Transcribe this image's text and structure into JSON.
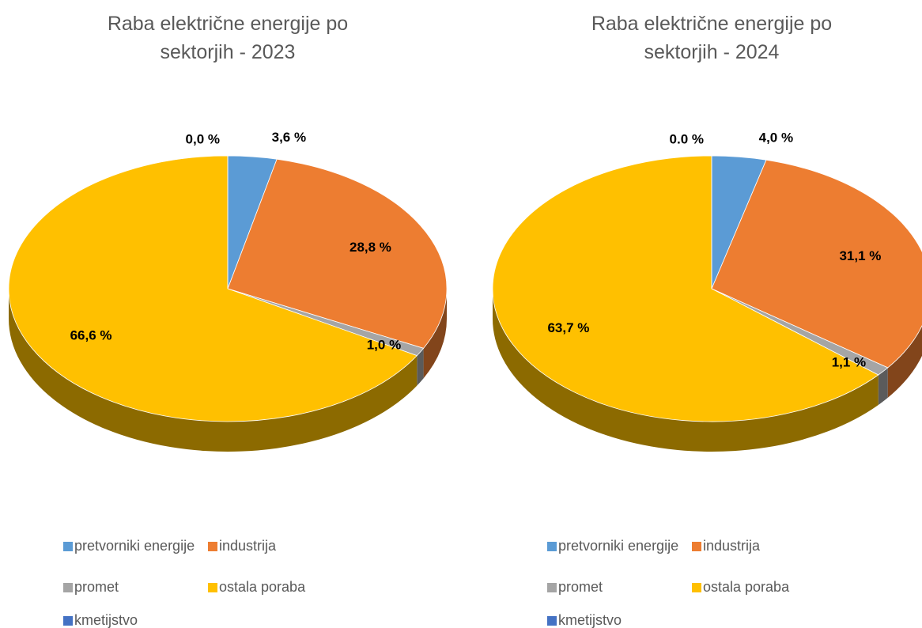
{
  "chart_data": [
    {
      "type": "pie",
      "title": "Raba električne energije po sektorjih - 2023",
      "categories": [
        "pretvorniki energije",
        "industrija",
        "promet",
        "ostala poraba",
        "kmetijstvo"
      ],
      "values": [
        3.6,
        28.8,
        1.0,
        66.6,
        0.0
      ],
      "value_labels": [
        "3,6 %",
        "28,8 %",
        "1,0 %",
        "66,6 %",
        "0,0 %"
      ],
      "colors": [
        "#5b9bd5",
        "#ed7d31",
        "#a5a5a5",
        "#ffc000",
        "#4472c4"
      ]
    },
    {
      "type": "pie",
      "title": "Raba električne energije po sektorjih - 2024",
      "categories": [
        "pretvorniki energije",
        "industrija",
        "promet",
        "ostala poraba",
        "kmetijstvo"
      ],
      "values": [
        4.0,
        31.1,
        1.1,
        63.7,
        0.0
      ],
      "value_labels": [
        "4,0 %",
        "31,1 %",
        "1,1 %",
        "63,7 %",
        "0.0 %"
      ],
      "colors": [
        "#5b9bd5",
        "#ed7d31",
        "#a5a5a5",
        "#ffc000",
        "#4472c4"
      ]
    }
  ]
}
